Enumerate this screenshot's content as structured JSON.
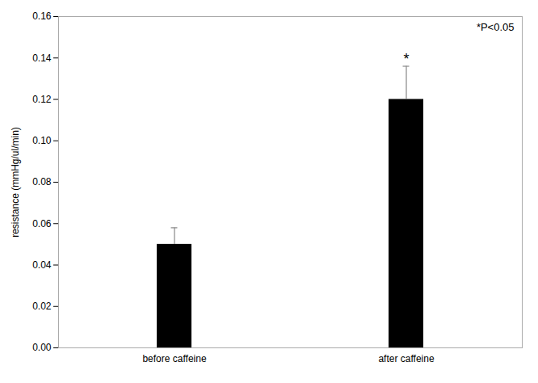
{
  "chart_data": {
    "type": "bar",
    "categories": [
      "before caffeine",
      "after caffeine"
    ],
    "values": [
      0.05,
      0.12
    ],
    "errors_up": [
      0.008,
      0.016
    ],
    "errors_down": [
      0.0,
      0.0
    ],
    "color": "#000000",
    "ylabel": "resistance (mmHg/ul/min)",
    "ylim": [
      0,
      0.16
    ],
    "yticks": [
      {
        "value": 0,
        "label": "0.00"
      },
      0.02,
      0.04,
      0.06,
      0.08,
      {
        "value": 0.1,
        "label": "0.10"
      },
      0.12,
      0.14,
      0.16
    ],
    "annotations": [
      {
        "text": "*",
        "category": "after caffeine"
      },
      {
        "text": "*P<0.05"
      }
    ],
    "grid": false
  }
}
